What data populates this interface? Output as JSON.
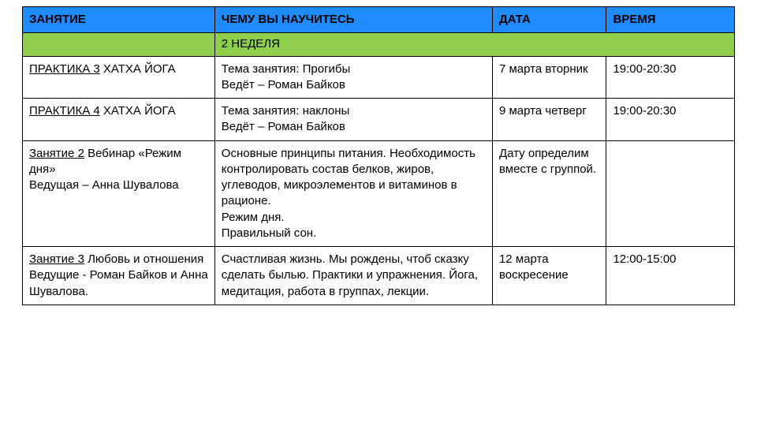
{
  "table": {
    "header_bg": "#1f8bff",
    "section_bg": "#8ece4b",
    "columns": {
      "activity": "ЗАНЯТИЕ",
      "topic": "ЧЕМУ ВЫ НАУЧИТЕСЬ",
      "date": "ДАТА",
      "time": "ВРЕМЯ"
    },
    "section_label": "2 НЕДЕЛЯ",
    "rows": [
      {
        "activity_underline": "ПРАКТИКА 3",
        "activity_rest": " ХАТХА ЙОГА",
        "topic": "Тема занятия: Прогибы\nВедёт – Роман Байков",
        "date": "7 марта вторник",
        "time": "19:00-20:30"
      },
      {
        "activity_underline": "ПРАКТИКА 4",
        "activity_rest": " ХАТХА ЙОГА",
        "topic": "Тема занятия: наклоны\nВедёт – Роман Байков",
        "date": "9 марта четверг",
        "time": "19:00-20:30"
      },
      {
        "activity_underline": "Занятие 2",
        "activity_rest": " Вебинар «Режим дня»\nВедущая – Анна Шувалова",
        "topic": "Основные принципы питания. Необходимость контролировать состав белков, жиров, углеводов, микроэлементов и витаминов в рационе.\nРежим дня.\nПравильный сон.",
        "date": "Дату определим вместе с группой.",
        "time": ""
      },
      {
        "activity_underline": "Занятие 3",
        "activity_rest": " Любовь и отношения\nВедущие - Роман Байков и Анна Шувалова.",
        "topic": "Счастливая жизнь. Мы рождены, чтоб сказку сделать былью. Практики и упражнения. Йога, медитация, работа в группах, лекции.",
        "date": "12 марта воскресение",
        "time": "12:00-15:00"
      }
    ]
  }
}
